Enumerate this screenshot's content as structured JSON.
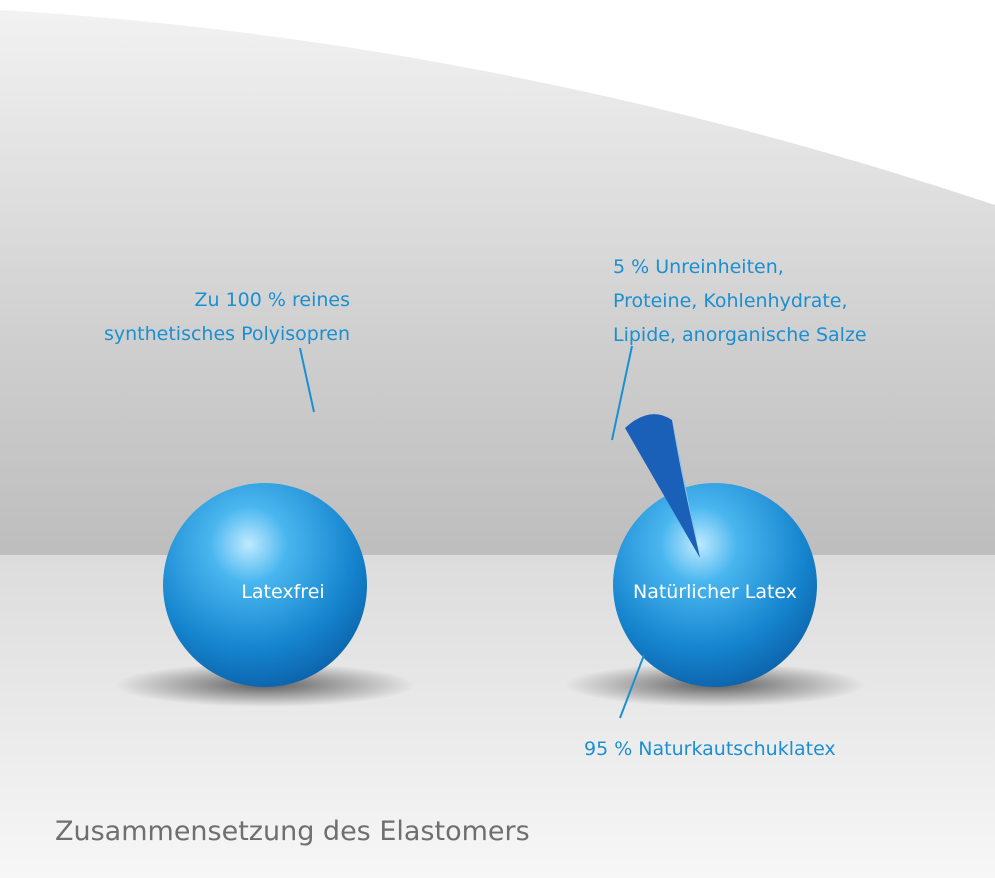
{
  "spheres": [
    {
      "label": "Latexfrei",
      "callout": [
        "Zu 100 % reines",
        "synthetisches Polyisopren"
      ]
    },
    {
      "label": "Natürlicher Latex",
      "callout": [
        "5 % Unreinheiten,",
        "Proteine, Kohlenhydrate,",
        "Lipide, anorganische Salze"
      ],
      "callout_bottom": "95 % Naturkautschuklatex"
    }
  ],
  "caption": "Zusammensetzung des Elastomers"
}
